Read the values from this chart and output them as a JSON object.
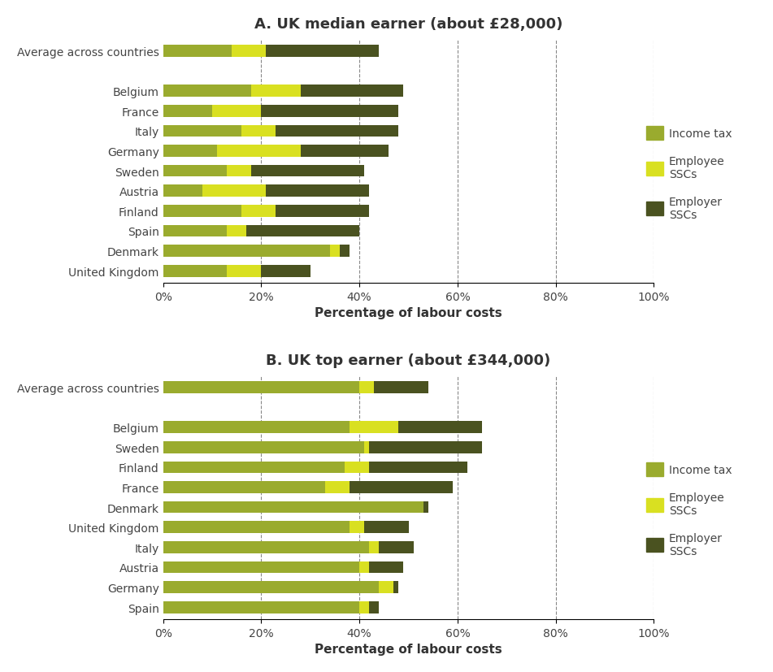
{
  "chart_A": {
    "title": "A. UK median earner (about £28,000)",
    "countries": [
      "Average across countries",
      "",
      "Belgium",
      "France",
      "Italy",
      "Germany",
      "Sweden",
      "Austria",
      "Finland",
      "Spain",
      "Denmark",
      "United Kingdom"
    ],
    "income_tax": [
      14,
      0,
      18,
      10,
      16,
      11,
      13,
      8,
      16,
      13,
      34,
      13
    ],
    "employee_ssc": [
      7,
      0,
      10,
      10,
      7,
      17,
      5,
      13,
      7,
      4,
      2,
      7
    ],
    "employer_ssc": [
      23,
      0,
      21,
      28,
      25,
      18,
      23,
      21,
      19,
      23,
      2,
      10
    ]
  },
  "chart_B": {
    "title": "B. UK top earner (about £344,000)",
    "countries": [
      "Average across countries",
      "",
      "Belgium",
      "Sweden",
      "Finland",
      "France",
      "Denmark",
      "United Kingdom",
      "Italy",
      "Austria",
      "Germany",
      "Spain"
    ],
    "income_tax": [
      40,
      0,
      38,
      41,
      37,
      33,
      53,
      38,
      42,
      40,
      44,
      40
    ],
    "employee_ssc": [
      3,
      0,
      10,
      1,
      5,
      5,
      0,
      3,
      2,
      2,
      3,
      2
    ],
    "employer_ssc": [
      11,
      0,
      17,
      23,
      20,
      21,
      1,
      9,
      7,
      7,
      1,
      2
    ]
  },
  "colors": {
    "income_tax": "#9aab2e",
    "employee_ssc": "#d9e021",
    "employer_ssc": "#4a5220"
  },
  "xlabel": "Percentage of labour costs",
  "xlim": [
    0,
    100
  ],
  "xticks": [
    0,
    20,
    40,
    60,
    80,
    100
  ],
  "xticklabels": [
    "0%",
    "20%",
    "40%",
    "60%",
    "80%",
    "100%"
  ]
}
